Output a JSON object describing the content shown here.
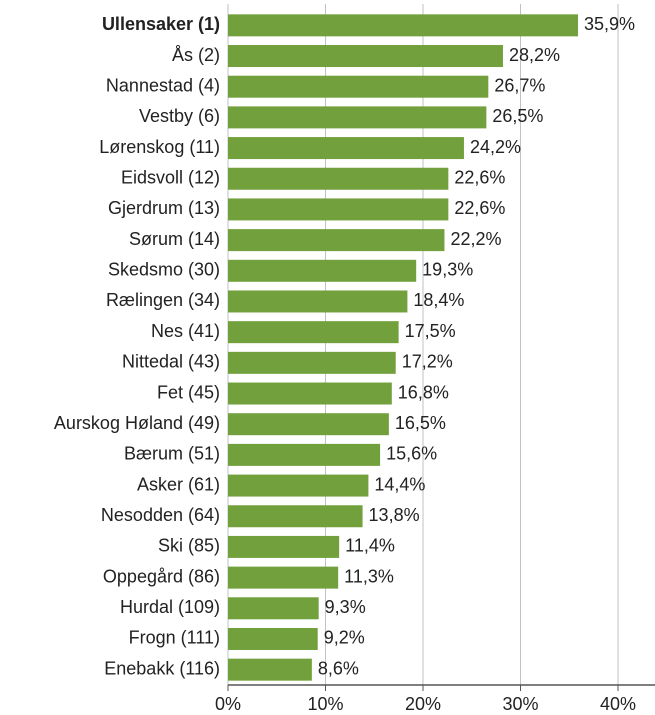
{
  "chart_data": {
    "type": "bar",
    "orientation": "horizontal",
    "categories": [
      "Ullensaker (1)",
      "Ås (2)",
      "Nannestad (4)",
      "Vestby (6)",
      "Lørenskog (11)",
      "Eidsvoll (12)",
      "Gjerdrum (13)",
      "Sørum (14)",
      "Skedsmo (30)",
      "Rælingen (34)",
      "Nes (41)",
      "Nittedal (43)",
      "Fet (45)",
      "Aurskog Høland (49)",
      "Bærum (51)",
      "Asker (61)",
      "Nesodden (64)",
      "Ski (85)",
      "Oppegård (86)",
      "Hurdal (109)",
      "Frogn (111)",
      "Enebakk (116)"
    ],
    "values": [
      35.9,
      28.2,
      26.7,
      26.5,
      24.2,
      22.6,
      22.6,
      22.2,
      19.3,
      18.4,
      17.5,
      17.2,
      16.8,
      16.5,
      15.6,
      14.4,
      13.8,
      11.4,
      11.3,
      9.3,
      9.2,
      8.6
    ],
    "value_labels": [
      "35,9%",
      "28,2%",
      "26,7%",
      "26,5%",
      "24,2%",
      "22,6%",
      "22,6%",
      "22,2%",
      "19,3%",
      "18,4%",
      "17,5%",
      "17,2%",
      "16,8%",
      "16,5%",
      "15,6%",
      "14,4%",
      "13,8%",
      "11,4%",
      "11,3%",
      "9,3%",
      "9,2%",
      "8,6%"
    ],
    "color": "#72a03c",
    "xlim": [
      0,
      44
    ],
    "xticks": [
      {
        "value": 0,
        "label": "0%"
      },
      {
        "value": 10,
        "label": "10%"
      },
      {
        "value": 20,
        "label": "20%"
      },
      {
        "value": 30,
        "label": "30%"
      },
      {
        "value": 40,
        "label": "40%"
      }
    ],
    "grid": true
  }
}
